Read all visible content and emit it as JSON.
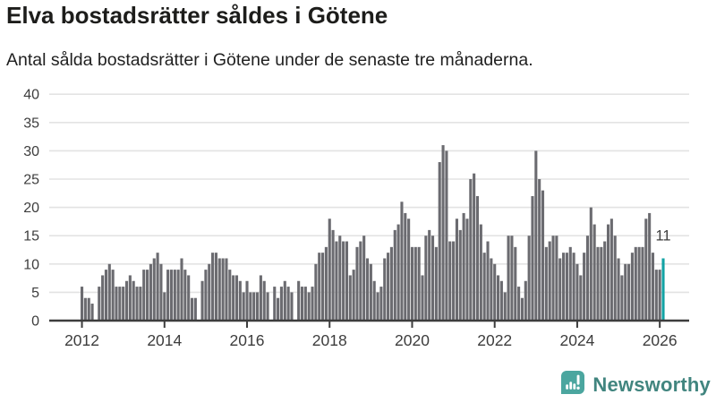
{
  "title": "Elva bostadsrätter såldes i Götene",
  "subtitle": "Antal sålda bostadsrätter i Götene under de senaste tre månaderna.",
  "branding": {
    "name": "Newsworthy",
    "icon": "bar-chart-speech-bubble-icon",
    "icon_color": "#4ba69f",
    "text_color": "#41857f"
  },
  "colors": {
    "bar": "#6b6b70",
    "highlight": "#12a2a4",
    "axis": "#3d3d3d",
    "grid": "#e3e3e3",
    "label": "#3d3d3d",
    "annotation": "#3d3d3d"
  },
  "chart_data": {
    "type": "bar",
    "x_unit": "month",
    "x_start": "2012-01",
    "x_end": "2026-02",
    "x_tick_labels": [
      "2012",
      "2014",
      "2016",
      "2018",
      "2020",
      "2022",
      "2024",
      "2026"
    ],
    "y_ticks": [
      0,
      5,
      10,
      15,
      20,
      25,
      30,
      35,
      40
    ],
    "ylim": [
      0,
      40
    ],
    "grid": "horizontal",
    "legend": "none",
    "highlight_last": true,
    "last_value_label": "11",
    "values": [
      6,
      4,
      4,
      3,
      0,
      6,
      8,
      9,
      10,
      9,
      6,
      6,
      6,
      7,
      8,
      7,
      6,
      6,
      9,
      9,
      10,
      11,
      12,
      10,
      5,
      9,
      9,
      9,
      9,
      11,
      9,
      8,
      4,
      4,
      0,
      7,
      9,
      10,
      12,
      12,
      11,
      11,
      11,
      9,
      8,
      8,
      7,
      5,
      7,
      5,
      5,
      5,
      8,
      7,
      5,
      0,
      6,
      4,
      6,
      7,
      6,
      5,
      0,
      7,
      6,
      6,
      5,
      6,
      10,
      12,
      12,
      13,
      18,
      16,
      14,
      15,
      14,
      14,
      8,
      9,
      13,
      14,
      15,
      11,
      10,
      7,
      5,
      6,
      11,
      12,
      13,
      16,
      17,
      21,
      19,
      18,
      13,
      13,
      13,
      8,
      15,
      16,
      15,
      13,
      28,
      31,
      30,
      14,
      14,
      18,
      16,
      19,
      18,
      25,
      26,
      22,
      17,
      12,
      14,
      11,
      10,
      8,
      7,
      5,
      15,
      15,
      13,
      6,
      4,
      7,
      15,
      22,
      30,
      25,
      23,
      13,
      14,
      15,
      15,
      11,
      12,
      12,
      13,
      12,
      10,
      8,
      12,
      15,
      20,
      17,
      13,
      13,
      14,
      17,
      18,
      15,
      11,
      8,
      10,
      10,
      12,
      13,
      13,
      13,
      18,
      19,
      12,
      9,
      9,
      11
    ]
  }
}
